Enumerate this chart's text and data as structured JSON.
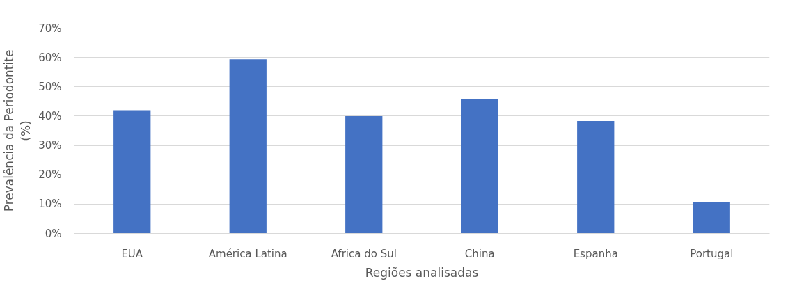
{
  "chart_data": {
    "type": "bar",
    "xlabel": "Regiões analisadas",
    "ylabel": "Prevalência da Periodontite\n(%)",
    "categories": [
      "EUA",
      "América Latina",
      "Africa do Sul",
      "China",
      "Espanha",
      "Portugal"
    ],
    "values": [
      42,
      59.4,
      40,
      45.8,
      38.3,
      10.6
    ],
    "color": "#4472c4",
    "ylim": [
      0,
      70
    ],
    "yticks": [
      {
        "value": 0,
        "label": "0%"
      },
      {
        "value": 10,
        "label": "10%"
      },
      {
        "value": 20,
        "label": "20%"
      },
      {
        "value": 30,
        "label": "30%"
      },
      {
        "value": 40,
        "label": "40%"
      },
      {
        "value": 50,
        "label": "50%"
      },
      {
        "value": 60,
        "label": "60%"
      },
      {
        "value": 70,
        "label": "70%"
      }
    ],
    "grid": "y"
  }
}
